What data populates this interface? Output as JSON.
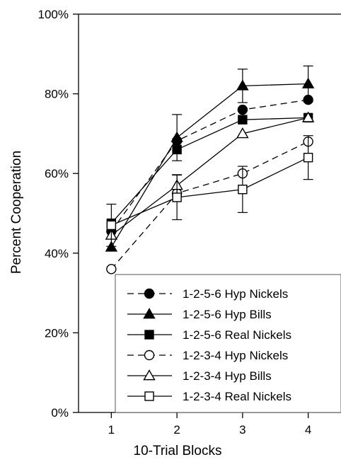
{
  "chart_data": {
    "type": "line",
    "title": "",
    "xlabel": "10-Trial Blocks",
    "ylabel": "Percent Cooperation",
    "x": [
      1,
      2,
      3,
      4
    ],
    "xlim": [
      0.5,
      4.5
    ],
    "ylim": [
      0,
      100
    ],
    "x_ticks": [
      "1",
      "2",
      "3",
      "4"
    ],
    "y_ticks": [
      "0%",
      "20%",
      "40%",
      "60%",
      "80%",
      "100%"
    ],
    "grid": false,
    "legend_position": "bottom-right",
    "series": [
      {
        "name": "1-2-5-6 Hyp Nickels",
        "marker": "circle",
        "filled": true,
        "dashed": true,
        "values": [
          45.5,
          68.2,
          76.0,
          78.5
        ],
        "error": [
          0,
          0,
          0,
          0
        ]
      },
      {
        "name": "1-2-5-6 Hyp Bills",
        "marker": "triangle",
        "filled": true,
        "dashed": false,
        "values": [
          41.5,
          69.0,
          82.0,
          82.5
        ],
        "error": [
          0,
          5.8,
          4.2,
          4.5
        ]
      },
      {
        "name": "1-2-5-6 Real Nickels",
        "marker": "square",
        "filled": true,
        "dashed": false,
        "values": [
          47.5,
          66.0,
          73.5,
          74.0
        ],
        "error": [
          0,
          0,
          0,
          0
        ]
      },
      {
        "name": "1-2-3-4 Hyp Nickels",
        "marker": "circle",
        "filled": false,
        "dashed": true,
        "values": [
          36.0,
          55.0,
          60.0,
          68.0
        ],
        "error": [
          0,
          0,
          0,
          0
        ]
      },
      {
        "name": "1-2-3-4 Hyp Bills",
        "marker": "triangle",
        "filled": false,
        "dashed": false,
        "values": [
          44.5,
          57.0,
          70.0,
          74.0
        ],
        "error": [
          0,
          2.7,
          0,
          0
        ]
      },
      {
        "name": "1-2-3-4 Real Nickels",
        "marker": "square",
        "filled": false,
        "dashed": false,
        "values": [
          47.0,
          54.0,
          56.0,
          64.0
        ],
        "error": [
          5.3,
          5.6,
          5.8,
          5.5
        ]
      }
    ]
  }
}
